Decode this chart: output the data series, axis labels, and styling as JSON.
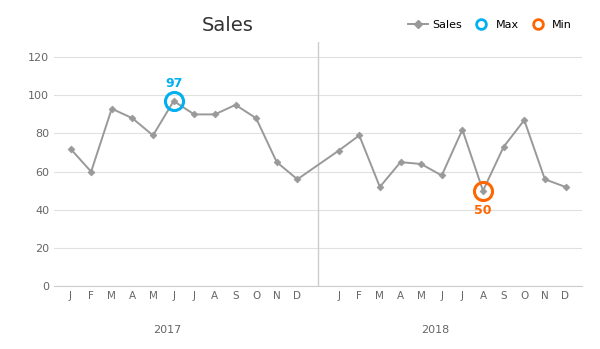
{
  "title": "Sales",
  "sales_2017": [
    72,
    60,
    93,
    88,
    79,
    97,
    90,
    90,
    95,
    88,
    65,
    56
  ],
  "sales_2018": [
    71,
    79,
    52,
    65,
    64,
    58,
    82,
    50,
    73,
    87,
    56,
    52
  ],
  "months": [
    "J",
    "F",
    "M",
    "A",
    "M",
    "J",
    "J",
    "A",
    "S",
    "O",
    "N",
    "D"
  ],
  "year_2017_label": "2017",
  "year_2018_label": "2018",
  "max_index_2017": 5,
  "max_value": 97,
  "min_index_2018": 7,
  "min_value": 50,
  "line_color": "#999999",
  "line_marker": "D",
  "line_markersize": 3.5,
  "max_color": "#00B0F0",
  "min_color": "#FF6600",
  "ylim": [
    0,
    128
  ],
  "yticks": [
    0,
    20,
    40,
    60,
    80,
    100,
    120
  ],
  "background_color": "#ffffff",
  "title_fontsize": 14,
  "annotation_fontsize": 9,
  "separator_color": "#cccccc",
  "grid_color": "#e0e0e0"
}
